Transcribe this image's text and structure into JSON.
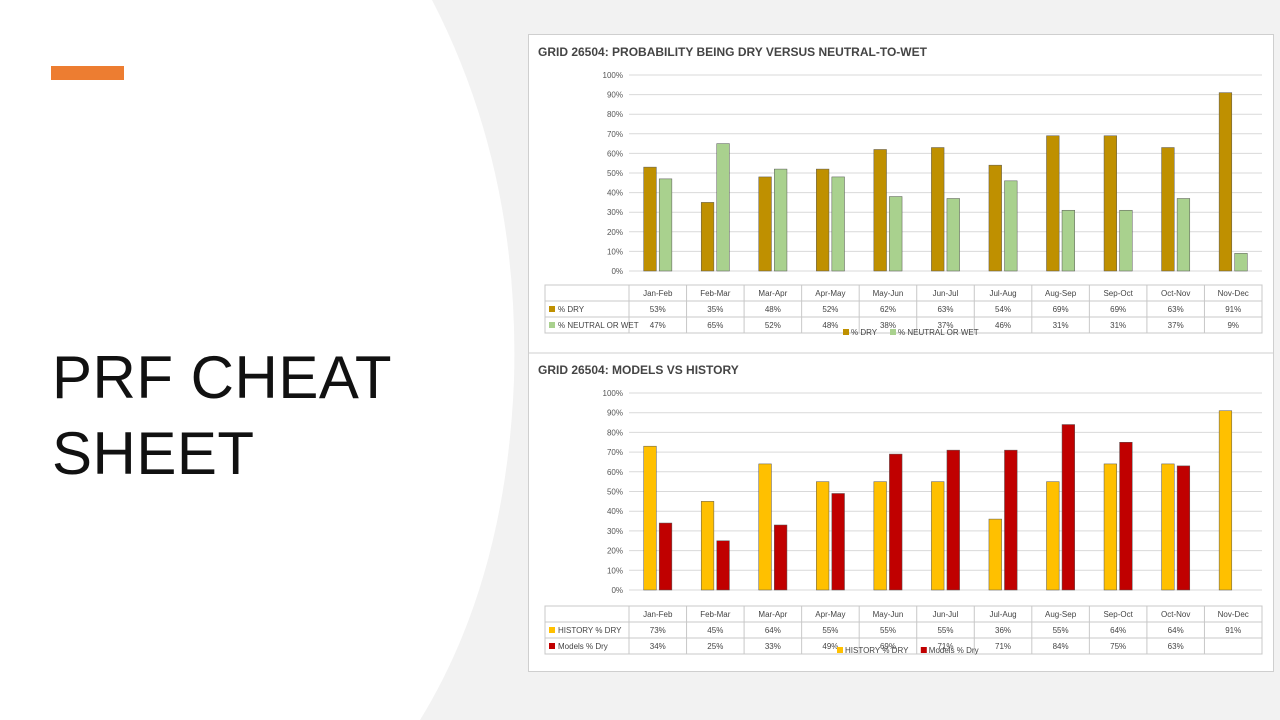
{
  "slide": {
    "title_line1": "PRF CHEAT",
    "title_line2": "SHEET",
    "accent_color": "#ed7d31"
  },
  "chart_data": [
    {
      "type": "bar",
      "title": "GRID 26504: PROBABILITY BEING DRY VERSUS NEUTRAL-TO-WET",
      "categories": [
        "Jan-Feb",
        "Feb-Mar",
        "Mar-Apr",
        "Apr-May",
        "May-Jun",
        "Jun-Jul",
        "Jul-Aug",
        "Aug-Sep",
        "Sep-Oct",
        "Oct-Nov",
        "Nov-Dec"
      ],
      "ylim": [
        0,
        100
      ],
      "yticks": [
        "0%",
        "10%",
        "20%",
        "30%",
        "40%",
        "50%",
        "60%",
        "70%",
        "80%",
        "90%",
        "100%"
      ],
      "series": [
        {
          "name": "% DRY",
          "color": "#bf9000",
          "values": [
            53,
            35,
            48,
            52,
            62,
            63,
            54,
            69,
            69,
            63,
            91
          ],
          "labels": [
            "53%",
            "35%",
            "48%",
            "52%",
            "62%",
            "63%",
            "54%",
            "69%",
            "69%",
            "63%",
            "91%"
          ]
        },
        {
          "name": "% NEUTRAL OR WET",
          "color": "#a9d18e",
          "values": [
            47,
            65,
            52,
            48,
            38,
            37,
            46,
            31,
            31,
            37,
            9
          ],
          "labels": [
            "47%",
            "65%",
            "52%",
            "48%",
            "38%",
            "37%",
            "46%",
            "31%",
            "31%",
            "37%",
            "9%"
          ]
        }
      ],
      "legend_position": "bottom"
    },
    {
      "type": "bar",
      "title": "GRID 26504: MODELS VS HISTORY",
      "categories": [
        "Jan-Feb",
        "Feb-Mar",
        "Mar-Apr",
        "Apr-May",
        "May-Jun",
        "Jun-Jul",
        "Jul-Aug",
        "Aug-Sep",
        "Sep-Oct",
        "Oct-Nov",
        "Nov-Dec"
      ],
      "ylim": [
        0,
        100
      ],
      "yticks": [
        "0%",
        "10%",
        "20%",
        "30%",
        "40%",
        "50%",
        "60%",
        "70%",
        "80%",
        "90%",
        "100%"
      ],
      "series": [
        {
          "name": "HISTORY % DRY",
          "color": "#ffc000",
          "values": [
            73,
            45,
            64,
            55,
            55,
            55,
            36,
            55,
            64,
            64,
            91
          ],
          "labels": [
            "73%",
            "45%",
            "64%",
            "55%",
            "55%",
            "55%",
            "36%",
            "55%",
            "64%",
            "64%",
            "91%"
          ]
        },
        {
          "name": "Models % Dry",
          "color": "#c00000",
          "values": [
            34,
            25,
            33,
            49,
            69,
            71,
            71,
            84,
            75,
            63,
            null
          ],
          "labels": [
            "34%",
            "25%",
            "33%",
            "49%",
            "69%",
            "71%",
            "71%",
            "84%",
            "75%",
            "63%",
            ""
          ]
        }
      ],
      "legend_position": "bottom"
    }
  ]
}
